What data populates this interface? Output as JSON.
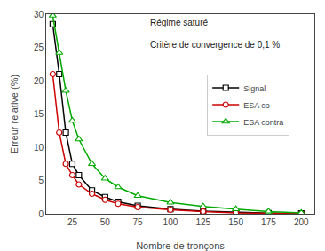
{
  "chart_data": {
    "type": "line",
    "x": [
      10,
      15,
      20,
      25,
      30,
      40,
      50,
      60,
      75,
      100,
      125,
      150,
      175,
      200
    ],
    "series": [
      {
        "name": "Signal",
        "color": "#000000",
        "marker": "square",
        "values": [
          28.5,
          21.0,
          12.2,
          7.5,
          5.8,
          3.5,
          2.5,
          1.8,
          1.2,
          0.7,
          0.4,
          0.2,
          0.1,
          0.05
        ]
      },
      {
        "name": "ESA co",
        "color": "#cc0000",
        "marker": "circle",
        "values": [
          21.0,
          12.2,
          7.5,
          5.8,
          4.4,
          3.0,
          2.1,
          1.5,
          1.0,
          0.6,
          0.35,
          0.15,
          0.08,
          0.03
        ]
      },
      {
        "name": "ESA contra",
        "color": "#00aa00",
        "marker": "triangle",
        "values": [
          29.8,
          24.2,
          18.5,
          14.0,
          11.2,
          7.5,
          5.3,
          4.0,
          2.7,
          1.7,
          1.1,
          0.7,
          0.35,
          0.15
        ]
      }
    ],
    "xlabel": "Nombre de tronçons",
    "ylabel": "Erreur relative (%)",
    "annotations": [
      "Régime saturé",
      "Critère de convergence de 0,1 %"
    ],
    "xlim": [
      5,
      210
    ],
    "ylim": [
      0,
      30
    ],
    "xticks": [
      25,
      50,
      75,
      100,
      125,
      150,
      175,
      200
    ],
    "yticks": [
      0,
      5,
      10,
      15,
      20,
      25,
      30
    ],
    "grid": false,
    "legend": "right"
  }
}
